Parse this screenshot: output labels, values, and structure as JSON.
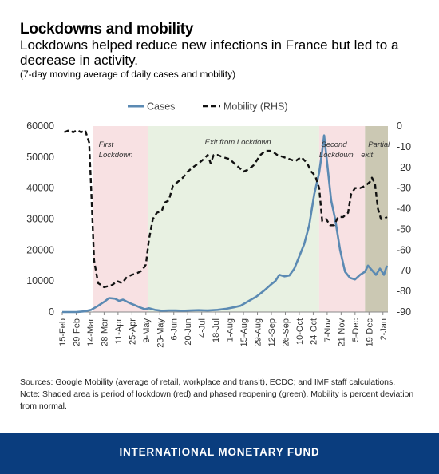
{
  "header": {
    "title": "Lockdowns and mobility",
    "subtitle": "Lockdowns helped reduce new infections in France but led to a decrease in activity.",
    "subnote": "(7-day moving average of daily cases and mobility)"
  },
  "notes": {
    "sources": "Sources: Google Mobility (average of retail, workplace and transit), ECDC; and IMF staff calculations.",
    "note": "Note: Shaded area is period of lockdown (red) and phased reopening (green). Mobility is percent deviation from normal."
  },
  "footer": {
    "org": "INTERNATIONAL MONETARY FUND"
  },
  "colors": {
    "cases": "#5b8ab3",
    "mobility": "#111111",
    "lockdown": "#f8e1e3",
    "reopening": "#e8f1e2",
    "partial": "#cbc8b3",
    "footer": "#0a3d7e"
  },
  "chart_data": {
    "type": "line",
    "title": "",
    "xlabel": "",
    "ylabel": "",
    "ylabel_right": "",
    "legend": {
      "position": "top",
      "items": [
        "Cases",
        "Mobility (RHS)"
      ]
    },
    "ylim": [
      0,
      60000
    ],
    "yticks": [
      0,
      10000,
      20000,
      30000,
      40000,
      50000,
      60000
    ],
    "y2lim": [
      -90,
      0
    ],
    "y2ticks": [
      0,
      -10,
      -20,
      -30,
      -40,
      -50,
      -60,
      -70,
      -80,
      -90
    ],
    "xlim": [
      "2020-02-15",
      "2021-01-07"
    ],
    "xticks": [
      "15-Feb",
      "29-Feb",
      "14-Mar",
      "28-Mar",
      "11-Apr",
      "25-Apr",
      "9-May",
      "23-May",
      "6-Jun",
      "20-Jun",
      "4-Jul",
      "18-Jul",
      "1-Aug",
      "15-Aug",
      "29-Aug",
      "12-Sep",
      "26-Sep",
      "10-Oct",
      "24-Oct",
      "7-Nov",
      "21-Nov",
      "5-Dec",
      "19-Dec",
      "2-Jan"
    ],
    "periods": [
      {
        "label": "First Lockdown",
        "type": "lockdown",
        "start": "2020-03-17",
        "end": "2020-05-11"
      },
      {
        "label": "Exit from Lockdown",
        "type": "reopening",
        "start": "2020-05-11",
        "end": "2020-10-30"
      },
      {
        "label": "Second Lockdown",
        "type": "lockdown",
        "start": "2020-10-30",
        "end": "2020-12-15"
      },
      {
        "label": "Partial Lockdown exit",
        "type": "partial",
        "start": "2020-12-15",
        "end": "2021-01-07"
      }
    ],
    "series": [
      {
        "name": "Cases",
        "axis": "left",
        "style": "solid",
        "points": [
          [
            "2020-02-15",
            0
          ],
          [
            "2020-03-01",
            20
          ],
          [
            "2020-03-08",
            200
          ],
          [
            "2020-03-15",
            700
          ],
          [
            "2020-03-22",
            2000
          ],
          [
            "2020-03-29",
            3500
          ],
          [
            "2020-04-02",
            4500
          ],
          [
            "2020-04-08",
            4300
          ],
          [
            "2020-04-12",
            3600
          ],
          [
            "2020-04-16",
            4000
          ],
          [
            "2020-04-22",
            3000
          ],
          [
            "2020-04-28",
            2200
          ],
          [
            "2020-05-03",
            1500
          ],
          [
            "2020-05-08",
            900
          ],
          [
            "2020-05-12",
            1200
          ],
          [
            "2020-05-18",
            700
          ],
          [
            "2020-05-25",
            400
          ],
          [
            "2020-06-01",
            500
          ],
          [
            "2020-06-08",
            500
          ],
          [
            "2020-06-15",
            400
          ],
          [
            "2020-06-22",
            500
          ],
          [
            "2020-07-01",
            600
          ],
          [
            "2020-07-10",
            500
          ],
          [
            "2020-07-20",
            700
          ],
          [
            "2020-07-28",
            1000
          ],
          [
            "2020-08-05",
            1500
          ],
          [
            "2020-08-12",
            2000
          ],
          [
            "2020-08-20",
            3500
          ],
          [
            "2020-08-28",
            5000
          ],
          [
            "2020-09-05",
            7000
          ],
          [
            "2020-09-12",
            9000
          ],
          [
            "2020-09-16",
            10000
          ],
          [
            "2020-09-20",
            12000
          ],
          [
            "2020-09-25",
            11500
          ],
          [
            "2020-09-30",
            11800
          ],
          [
            "2020-10-05",
            14000
          ],
          [
            "2020-10-10",
            18000
          ],
          [
            "2020-10-15",
            22000
          ],
          [
            "2020-10-20",
            28000
          ],
          [
            "2020-10-25",
            38000
          ],
          [
            "2020-10-30",
            45000
          ],
          [
            "2020-11-02",
            52000
          ],
          [
            "2020-11-04",
            57000
          ],
          [
            "2020-11-07",
            48000
          ],
          [
            "2020-11-11",
            36000
          ],
          [
            "2020-11-15",
            30000
          ],
          [
            "2020-11-20",
            20000
          ],
          [
            "2020-11-25",
            13000
          ],
          [
            "2020-11-30",
            11000
          ],
          [
            "2020-12-05",
            10500
          ],
          [
            "2020-12-10",
            12000
          ],
          [
            "2020-12-15",
            13000
          ],
          [
            "2020-12-18",
            15000
          ],
          [
            "2020-12-22",
            13500
          ],
          [
            "2020-12-26",
            12000
          ],
          [
            "2020-12-30",
            14000
          ],
          [
            "2021-01-03",
            12000
          ],
          [
            "2021-01-06",
            15000
          ]
        ]
      },
      {
        "name": "Mobility (RHS)",
        "axis": "right",
        "style": "dashed",
        "points": [
          [
            "2020-02-17",
            -3
          ],
          [
            "2020-02-22",
            -2
          ],
          [
            "2020-02-26",
            -3
          ],
          [
            "2020-03-01",
            -2
          ],
          [
            "2020-03-05",
            -3
          ],
          [
            "2020-03-09",
            -2
          ],
          [
            "2020-03-13",
            -8
          ],
          [
            "2020-03-15",
            -30
          ],
          [
            "2020-03-18",
            -65
          ],
          [
            "2020-03-22",
            -76
          ],
          [
            "2020-03-28",
            -78
          ],
          [
            "2020-04-05",
            -77
          ],
          [
            "2020-04-10",
            -75
          ],
          [
            "2020-04-15",
            -76
          ],
          [
            "2020-04-20",
            -73
          ],
          [
            "2020-04-25",
            -72
          ],
          [
            "2020-05-01",
            -71
          ],
          [
            "2020-05-05",
            -70
          ],
          [
            "2020-05-09",
            -67
          ],
          [
            "2020-05-12",
            -55
          ],
          [
            "2020-05-16",
            -45
          ],
          [
            "2020-05-20",
            -42
          ],
          [
            "2020-05-25",
            -41
          ],
          [
            "2020-05-28",
            -37
          ],
          [
            "2020-06-01",
            -36
          ],
          [
            "2020-06-05",
            -29
          ],
          [
            "2020-06-10",
            -27
          ],
          [
            "2020-06-15",
            -25
          ],
          [
            "2020-06-20",
            -22
          ],
          [
            "2020-06-25",
            -20
          ],
          [
            "2020-07-01",
            -18
          ],
          [
            "2020-07-06",
            -16
          ],
          [
            "2020-07-10",
            -14
          ],
          [
            "2020-07-13",
            -18
          ],
          [
            "2020-07-16",
            -14
          ],
          [
            "2020-07-20",
            -14
          ],
          [
            "2020-07-25",
            -15
          ],
          [
            "2020-08-01",
            -16
          ],
          [
            "2020-08-08",
            -19
          ],
          [
            "2020-08-15",
            -22
          ],
          [
            "2020-08-20",
            -21
          ],
          [
            "2020-08-25",
            -19
          ],
          [
            "2020-09-01",
            -14
          ],
          [
            "2020-09-06",
            -12
          ],
          [
            "2020-09-12",
            -12
          ],
          [
            "2020-09-18",
            -14
          ],
          [
            "2020-09-24",
            -15
          ],
          [
            "2020-09-30",
            -16
          ],
          [
            "2020-10-06",
            -17
          ],
          [
            "2020-10-12",
            -15
          ],
          [
            "2020-10-18",
            -18
          ],
          [
            "2020-10-22",
            -22
          ],
          [
            "2020-10-26",
            -24
          ],
          [
            "2020-10-30",
            -30
          ],
          [
            "2020-11-02",
            -46
          ],
          [
            "2020-11-06",
            -45
          ],
          [
            "2020-11-10",
            -48
          ],
          [
            "2020-11-14",
            -48
          ],
          [
            "2020-11-18",
            -44
          ],
          [
            "2020-11-23",
            -44
          ],
          [
            "2020-11-28",
            -42
          ],
          [
            "2020-12-01",
            -33
          ],
          [
            "2020-12-05",
            -30
          ],
          [
            "2020-12-10",
            -30
          ],
          [
            "2020-12-15",
            -29
          ],
          [
            "2020-12-20",
            -27
          ],
          [
            "2020-12-22",
            -25
          ],
          [
            "2020-12-25",
            -28
          ],
          [
            "2020-12-28",
            -40
          ],
          [
            "2020-12-31",
            -45
          ],
          [
            "2021-01-03",
            -45
          ],
          [
            "2021-01-06",
            -44
          ]
        ]
      }
    ]
  }
}
